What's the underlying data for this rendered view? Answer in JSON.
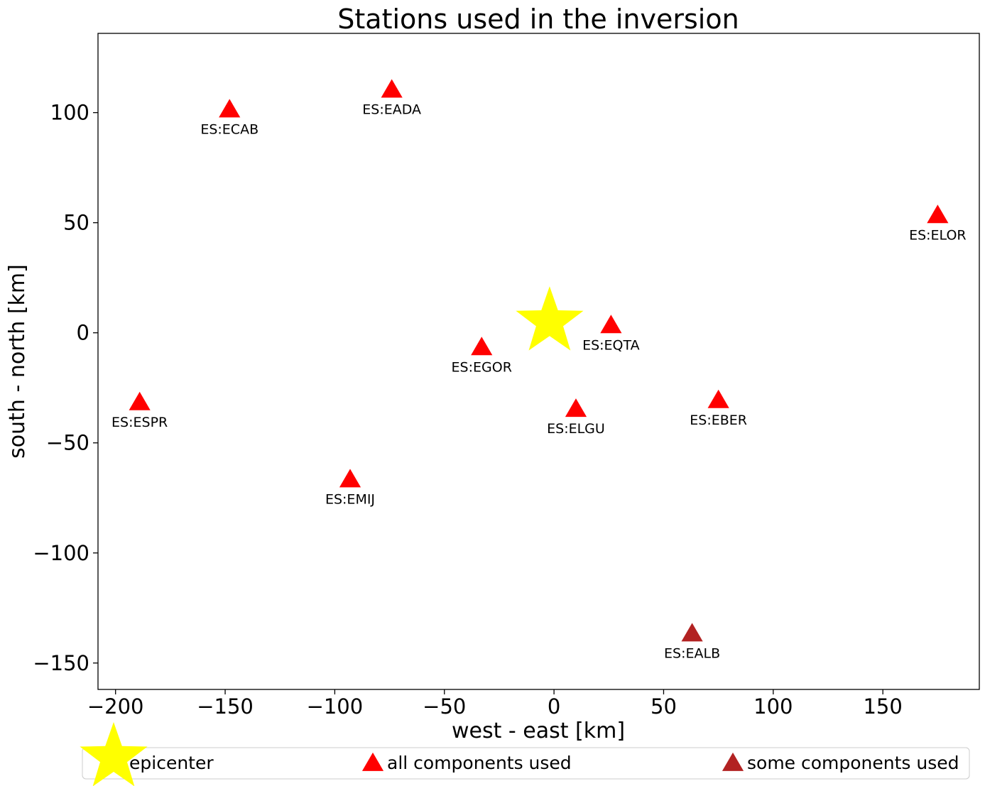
{
  "chart_data": {
    "type": "scatter",
    "title": "Stations used in the inversion",
    "xlabel": "west - east [km]",
    "ylabel": "south - north [km]",
    "xlim": [
      -208,
      194
    ],
    "ylim": [
      -162,
      136
    ],
    "xticks": [
      -200,
      -150,
      -100,
      -50,
      0,
      50,
      100,
      150
    ],
    "xtick_labels": [
      "−200",
      "−150",
      "−100",
      "−50",
      "0",
      "50",
      "100",
      "150"
    ],
    "yticks": [
      -150,
      -100,
      -50,
      0,
      50,
      100
    ],
    "ytick_labels": [
      "−150",
      "−100",
      "−50",
      "0",
      "50",
      "100"
    ],
    "grid": false,
    "legend_position": "bottom",
    "epicenter": {
      "x": -2,
      "y": 5
    },
    "stations": [
      {
        "name": "ES:ECAB",
        "x": -148,
        "y": 101,
        "status": "all"
      },
      {
        "name": "ES:EADA",
        "x": -74,
        "y": 110,
        "status": "all"
      },
      {
        "name": "ES:ELOR",
        "x": 175,
        "y": 53,
        "status": "all"
      },
      {
        "name": "ES:EQTA",
        "x": 26,
        "y": 3,
        "status": "all"
      },
      {
        "name": "ES:EGOR",
        "x": -33,
        "y": -7,
        "status": "all"
      },
      {
        "name": "ES:ESPR",
        "x": -189,
        "y": -32,
        "status": "all"
      },
      {
        "name": "ES:ELGU",
        "x": 10,
        "y": -35,
        "status": "all"
      },
      {
        "name": "ES:EBER",
        "x": 75,
        "y": -31,
        "status": "all"
      },
      {
        "name": "ES:EMIJ",
        "x": -93,
        "y": -67,
        "status": "all"
      },
      {
        "name": "ES:EALB",
        "x": 63,
        "y": -137,
        "status": "some"
      }
    ],
    "legend": [
      {
        "key": "epicenter",
        "label": "epicenter",
        "color": "#ffff00"
      },
      {
        "key": "all",
        "label": "all components used",
        "color": "#ff0000"
      },
      {
        "key": "some",
        "label": "some components used",
        "color": "#b22222"
      }
    ]
  }
}
